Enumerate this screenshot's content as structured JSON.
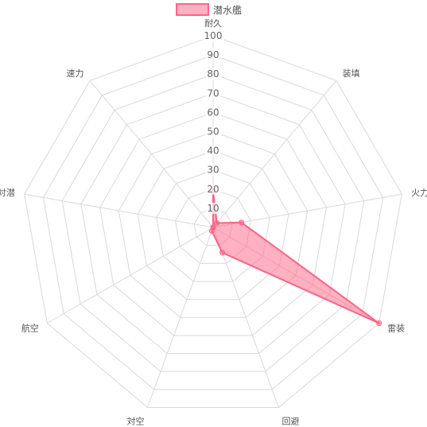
{
  "chart_data": {
    "type": "radar",
    "legend_position": "top",
    "axes": [
      "耐久",
      "装填",
      "火力",
      "雷装",
      "回避",
      "対空",
      "航空",
      "対潜",
      "速力"
    ],
    "ticks": [
      10,
      20,
      30,
      40,
      50,
      60,
      70,
      80,
      90,
      100
    ],
    "range": [
      0,
      100
    ],
    "grid": true,
    "series": [
      {
        "name": "潜水艦",
        "values": [
          19,
          3,
          15,
          100,
          14,
          2,
          0,
          0,
          0
        ],
        "color": "#ff6384",
        "fill_color": "rgba(255,99,132,0.5)"
      }
    ]
  }
}
